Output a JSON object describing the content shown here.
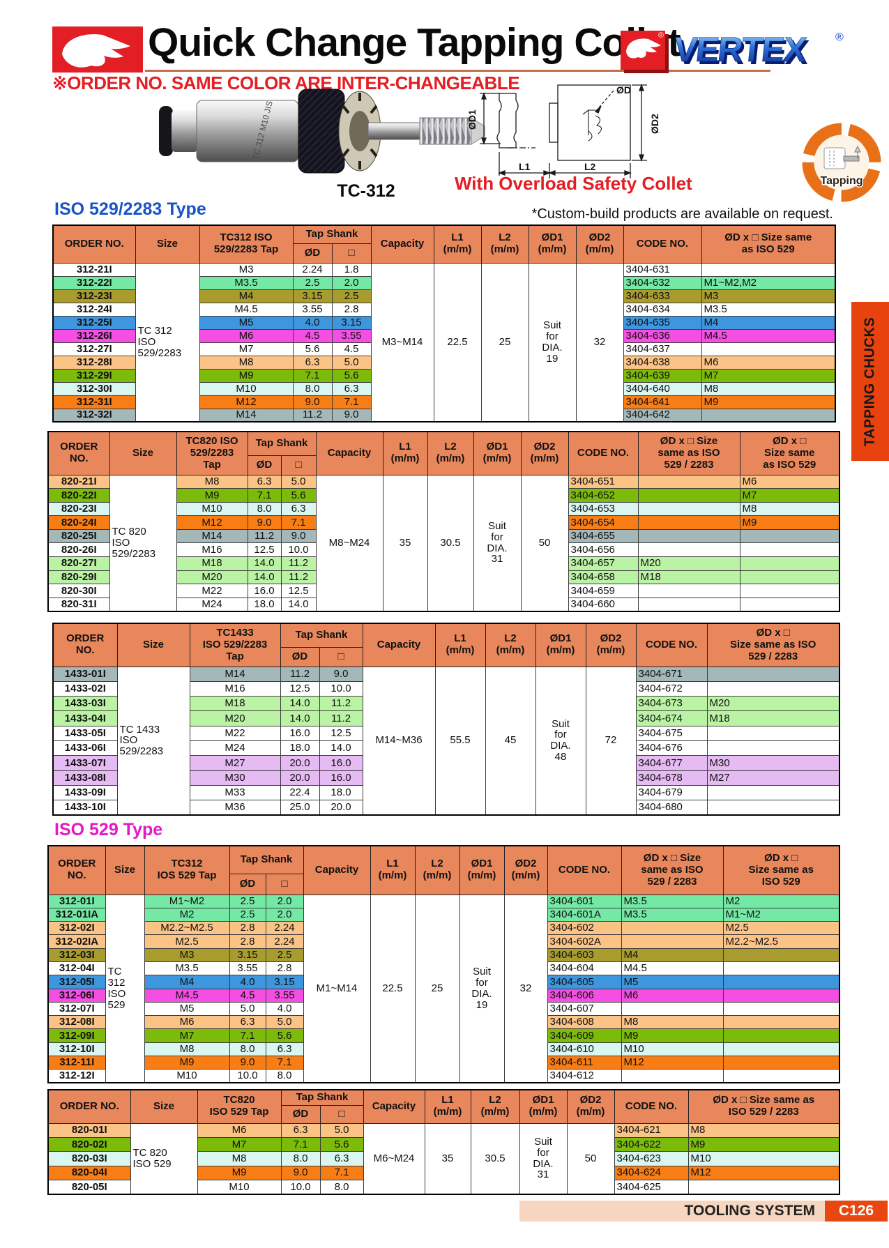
{
  "header": {
    "title": "Quick Change Tapping Collet",
    "brand": "VERTEX",
    "reg": "®",
    "note": "※ORDER NO. SAME COLOR ARE INTER-CHANGEABLE",
    "product_label": "TC-312",
    "overload_text": "With Overload Safety Collet",
    "badge_label": "Tapping"
  },
  "side_tab": "TAPPING CHUCKS",
  "sections": {
    "s1": {
      "title": "ISO 529/2283 Type",
      "note": "*Custom-build products are available on request."
    },
    "s2": {
      "title": "ISO 529 Type"
    }
  },
  "diagram": {
    "labels": [
      "ØD1",
      "ØD",
      "ØD2",
      "L1",
      "L2"
    ]
  },
  "footer": {
    "left": "TOOLING SYSTEM",
    "page": "C126"
  },
  "colors": {
    "accent_red": "#e31e24",
    "section_blue": "#1853c6",
    "section_magenta": "#e319c8",
    "header_bg": "#e8875c",
    "tab_bg": "#e8430e",
    "footer_bar_bg": "#f6d6bf",
    "footer_page_bg": "#e8470f",
    "title_underline": "#bf6f4b"
  },
  "row_colors": {
    "white": "#ffffff",
    "mint": "#74e9a5",
    "olive": "#a89c2f",
    "blue": "#3e96de",
    "magenta": "#f44ee3",
    "peach": "#fbc386",
    "green": "#7cbb0a",
    "cyan": "#d9f6f0",
    "orange": "#f97d15",
    "grayblue": "#a4b7b9",
    "ltgreen": "#bbf3a4",
    "purple": "#e6baf3"
  },
  "tables": [
    {
      "id": "t1",
      "tap_header": "TC312 ISO\n529/2283 Tap",
      "headers": {
        "order": "ORDER NO.",
        "size": "Size",
        "tap_shank": "Tap Shank",
        "od": "ØD",
        "sq": "□",
        "capacity": "Capacity",
        "l1": "L1\n(m/m)",
        "l2": "L2\n(m/m)",
        "od1": "ØD1\n(m/m)",
        "od2": "ØD2\n(m/m)",
        "code": "CODE NO.",
        "extras": [
          "ØD x □  Size same\nas ISO 529"
        ]
      },
      "merged": {
        "size": "TC 312\nISO\n529/2283",
        "capacity": "M3~M14",
        "l1": "22.5",
        "l2": "25",
        "od1": "Suit\nfor\nDIA.\n19",
        "od2": "32"
      },
      "rows": [
        {
          "order": "312-21I",
          "color": "white",
          "tap": "M3",
          "od": "2.24",
          "sq": "1.8",
          "code": "3404-631",
          "extras": [
            ""
          ]
        },
        {
          "order": "312-22I",
          "color": "mint",
          "tap": "M3.5",
          "od": "2.5",
          "sq": "2.0",
          "code": "3404-632",
          "extras": [
            "M1~M2,M2"
          ]
        },
        {
          "order": "312-23I",
          "color": "olive",
          "tap": "M4",
          "od": "3.15",
          "sq": "2.5",
          "code": "3404-633",
          "extras": [
            "M3"
          ]
        },
        {
          "order": "312-24I",
          "color": "white",
          "tap": "M4.5",
          "od": "3.55",
          "sq": "2.8",
          "code": "3404-634",
          "extras": [
            "M3.5"
          ]
        },
        {
          "order": "312-25I",
          "color": "blue",
          "tap": "M5",
          "od": "4.0",
          "sq": "3.15",
          "code": "3404-635",
          "extras": [
            "M4"
          ]
        },
        {
          "order": "312-26I",
          "color": "magenta",
          "tap": "M6",
          "od": "4.5",
          "sq": "3.55",
          "code": "3404-636",
          "extras": [
            "M4.5"
          ]
        },
        {
          "order": "312-27I",
          "color": "white",
          "tap": "M7",
          "od": "5.6",
          "sq": "4.5",
          "code": "3404-637",
          "extras": [
            ""
          ]
        },
        {
          "order": "312-28I",
          "color": "peach",
          "tap": "M8",
          "od": "6.3",
          "sq": "5.0",
          "code": "3404-638",
          "extras": [
            "M6"
          ]
        },
        {
          "order": "312-29I",
          "color": "green",
          "tap": "M9",
          "od": "7.1",
          "sq": "5.6",
          "code": "3404-639",
          "extras": [
            "M7"
          ]
        },
        {
          "order": "312-30I",
          "color": "cyan",
          "tap": "M10",
          "od": "8.0",
          "sq": "6.3",
          "code": "3404-640",
          "extras": [
            "M8"
          ]
        },
        {
          "order": "312-31I",
          "color": "orange",
          "tap": "M12",
          "od": "9.0",
          "sq": "7.1",
          "code": "3404-641",
          "extras": [
            "M9"
          ]
        },
        {
          "order": "312-32I",
          "color": "grayblue",
          "tap": "M14",
          "od": "11.2",
          "sq": "9.0",
          "code": "3404-642",
          "extras": [
            ""
          ]
        }
      ]
    },
    {
      "id": "t2",
      "tap_header": "TC820 ISO\n529/2283\nTap",
      "headers": {
        "order": "ORDER\nNO.",
        "size": "Size",
        "tap_shank": "Tap Shank",
        "od": "ØD",
        "sq": "□",
        "capacity": "Capacity",
        "l1": "L1\n(m/m)",
        "l2": "L2\n(m/m)",
        "od1": "ØD1\n(m/m)",
        "od2": "ØD2\n(m/m)",
        "code": "CODE NO.",
        "extras": [
          "ØD x □ Size\nsame as ISO\n529 / 2283",
          "ØD x □\nSize same\nas ISO 529"
        ]
      },
      "merged": {
        "size": "TC 820\nISO\n529/2283",
        "capacity": "M8~M24",
        "l1": "35",
        "l2": "30.5",
        "od1": "Suit\nfor\nDIA.\n31",
        "od2": "50"
      },
      "rows": [
        {
          "order": "820-21I",
          "color": "peach",
          "tap": "M8",
          "od": "6.3",
          "sq": "5.0",
          "code": "3404-651",
          "extras": [
            "",
            "M6"
          ]
        },
        {
          "order": "820-22I",
          "color": "green",
          "tap": "M9",
          "od": "7.1",
          "sq": "5.6",
          "code": "3404-652",
          "extras": [
            "",
            "M7"
          ]
        },
        {
          "order": "820-23I",
          "color": "cyan",
          "tap": "M10",
          "od": "8.0",
          "sq": "6.3",
          "code": "3404-653",
          "extras": [
            "",
            "M8"
          ]
        },
        {
          "order": "820-24I",
          "color": "orange",
          "tap": "M12",
          "od": "9.0",
          "sq": "7.1",
          "code": "3404-654",
          "extras": [
            "",
            "M9"
          ]
        },
        {
          "order": "820-25I",
          "color": "grayblue",
          "tap": "M14",
          "od": "11.2",
          "sq": "9.0",
          "code": "3404-655",
          "extras": [
            "",
            ""
          ]
        },
        {
          "order": "820-26I",
          "color": "white",
          "tap": "M16",
          "od": "12.5",
          "sq": "10.0",
          "code": "3404-656",
          "extras": [
            "",
            ""
          ]
        },
        {
          "order": "820-27I",
          "color": "ltgreen",
          "tap": "M18",
          "od": "14.0",
          "sq": "11.2",
          "code": "3404-657",
          "extras": [
            "M20",
            ""
          ]
        },
        {
          "order": "820-29I",
          "color": "ltgreen",
          "tap": "M20",
          "od": "14.0",
          "sq": "11.2",
          "code": "3404-658",
          "extras": [
            "M18",
            ""
          ]
        },
        {
          "order": "820-30I",
          "color": "white",
          "tap": "M22",
          "od": "16.0",
          "sq": "12.5",
          "code": "3404-659",
          "extras": [
            "",
            ""
          ]
        },
        {
          "order": "820-31I",
          "color": "white",
          "tap": "M24",
          "od": "18.0",
          "sq": "14.0",
          "code": "3404-660",
          "extras": [
            "",
            ""
          ]
        }
      ]
    },
    {
      "id": "t3",
      "tap_header": "TC1433\nISO 529/2283\nTap",
      "headers": {
        "order": "ORDER\nNO.",
        "size": "Size",
        "tap_shank": "Tap Shank",
        "od": "ØD",
        "sq": "□",
        "capacity": "Capacity",
        "l1": "L1\n(m/m)",
        "l2": "L2\n(m/m)",
        "od1": "ØD1\n(m/m)",
        "od2": "ØD2\n(m/m)",
        "code": "CODE NO.",
        "extras": [
          "ØD x □\nSize same as ISO\n529 / 2283"
        ]
      },
      "merged": {
        "size": "TC 1433\nISO\n529/2283",
        "capacity": "M14~M36",
        "l1": "55.5",
        "l2": "45",
        "od1": "Suit\nfor\nDIA.\n48",
        "od2": "72"
      },
      "rows": [
        {
          "order": "1433-01I",
          "color": "grayblue",
          "tap": "M14",
          "od": "11.2",
          "sq": "9.0",
          "code": "3404-671",
          "extras": [
            ""
          ]
        },
        {
          "order": "1433-02I",
          "color": "white",
          "tap": "M16",
          "od": "12.5",
          "sq": "10.0",
          "code": "3404-672",
          "extras": [
            ""
          ]
        },
        {
          "order": "1433-03I",
          "color": "ltgreen",
          "tap": "M18",
          "od": "14.0",
          "sq": "11.2",
          "code": "3404-673",
          "extras": [
            "M20"
          ]
        },
        {
          "order": "1433-04I",
          "color": "ltgreen",
          "tap": "M20",
          "od": "14.0",
          "sq": "11.2",
          "code": "3404-674",
          "extras": [
            "M18"
          ]
        },
        {
          "order": "1433-05I",
          "color": "white",
          "tap": "M22",
          "od": "16.0",
          "sq": "12.5",
          "code": "3404-675",
          "extras": [
            ""
          ]
        },
        {
          "order": "1433-06I",
          "color": "white",
          "tap": "M24",
          "od": "18.0",
          "sq": "14.0",
          "code": "3404-676",
          "extras": [
            ""
          ]
        },
        {
          "order": "1433-07I",
          "color": "purple",
          "tap": "M27",
          "od": "20.0",
          "sq": "16.0",
          "code": "3404-677",
          "extras": [
            "M30"
          ]
        },
        {
          "order": "1433-08I",
          "color": "purple",
          "tap": "M30",
          "od": "20.0",
          "sq": "16.0",
          "code": "3404-678",
          "extras": [
            "M27"
          ]
        },
        {
          "order": "1433-09I",
          "color": "white",
          "tap": "M33",
          "od": "22.4",
          "sq": "18.0",
          "code": "3404-679",
          "extras": [
            ""
          ]
        },
        {
          "order": "1433-10I",
          "color": "white",
          "tap": "M36",
          "od": "25.0",
          "sq": "20.0",
          "code": "3404-680",
          "extras": [
            ""
          ]
        }
      ]
    },
    {
      "id": "t4",
      "tap_header": "TC312\nIOS 529 Tap",
      "headers": {
        "order": "ORDER\nNO.",
        "size": "Size",
        "tap_shank": "Tap Shank",
        "od": "ØD",
        "sq": "□",
        "capacity": "Capacity",
        "l1": "L1\n(m/m)",
        "l2": "L2\n(m/m)",
        "od1": "ØD1\n(m/m)",
        "od2": "ØD2\n(m/m)",
        "code": "CODE NO.",
        "extras": [
          "ØD x □ Size\nsame as ISO\n529 / 2283",
          "ØD x □\nSize same as\nISO 529"
        ]
      },
      "merged": {
        "size": "TC\n312\nISO\n529",
        "capacity": "M1~M14",
        "l1": "22.5",
        "l2": "25",
        "od1": "Suit\nfor\nDIA.\n19",
        "od2": "32"
      },
      "rows": [
        {
          "order": "312-01I",
          "color": "mint",
          "tap": "M1~M2",
          "od": "2.5",
          "sq": "2.0",
          "code": "3404-601",
          "extras": [
            "M3.5",
            "M2"
          ]
        },
        {
          "order": "312-01IA",
          "color": "mint",
          "tap": "M2",
          "od": "2.5",
          "sq": "2.0",
          "code": "3404-601A",
          "extras": [
            "M3.5",
            "M1~M2"
          ]
        },
        {
          "order": "312-02I",
          "color": "peach",
          "tap": "M2.2~M2.5",
          "od": "2.8",
          "sq": "2.24",
          "code": "3404-602",
          "extras": [
            "",
            "M2.5"
          ]
        },
        {
          "order": "312-02IA",
          "color": "peach",
          "tap": "M2.5",
          "od": "2.8",
          "sq": "2.24",
          "code": "3404-602A",
          "extras": [
            "",
            "M2.2~M2.5"
          ]
        },
        {
          "order": "312-03I",
          "color": "olive",
          "tap": "M3",
          "od": "3.15",
          "sq": "2.5",
          "code": "3404-603",
          "extras": [
            "M4",
            ""
          ]
        },
        {
          "order": "312-04I",
          "color": "white",
          "tap": "M3.5",
          "od": "3.55",
          "sq": "2.8",
          "code": "3404-604",
          "extras": [
            "M4.5",
            ""
          ]
        },
        {
          "order": "312-05I",
          "color": "blue",
          "tap": "M4",
          "od": "4.0",
          "sq": "3.15",
          "code": "3404-605",
          "extras": [
            "M5",
            ""
          ]
        },
        {
          "order": "312-06I",
          "color": "magenta",
          "tap": "M4.5",
          "od": "4.5",
          "sq": "3.55",
          "code": "3404-606",
          "extras": [
            "M6",
            ""
          ]
        },
        {
          "order": "312-07I",
          "color": "white",
          "tap": "M5",
          "od": "5.0",
          "sq": "4.0",
          "code": "3404-607",
          "extras": [
            "",
            ""
          ]
        },
        {
          "order": "312-08I",
          "color": "peach",
          "tap": "M6",
          "od": "6.3",
          "sq": "5.0",
          "code": "3404-608",
          "extras": [
            "M8",
            ""
          ]
        },
        {
          "order": "312-09I",
          "color": "green",
          "tap": "M7",
          "od": "7.1",
          "sq": "5.6",
          "code": "3404-609",
          "extras": [
            "M9",
            ""
          ]
        },
        {
          "order": "312-10I",
          "color": "cyan",
          "tap": "M8",
          "od": "8.0",
          "sq": "6.3",
          "code": "3404-610",
          "extras": [
            "M10",
            ""
          ]
        },
        {
          "order": "312-11I",
          "color": "orange",
          "tap": "M9",
          "od": "9.0",
          "sq": "7.1",
          "code": "3404-611",
          "extras": [
            "M12",
            ""
          ]
        },
        {
          "order": "312-12I",
          "color": "white",
          "tap": "M10",
          "od": "10.0",
          "sq": "8.0",
          "code": "3404-612",
          "extras": [
            "",
            ""
          ]
        }
      ]
    },
    {
      "id": "t5",
      "tap_header": "TC820\nISO 529 Tap",
      "headers": {
        "order": "ORDER NO.",
        "size": "Size",
        "tap_shank": "Tap Shank",
        "od": "ØD",
        "sq": "□",
        "capacity": "Capacity",
        "l1": "L1\n(m/m)",
        "l2": "L2\n(m/m)",
        "od1": "ØD1\n(m/m)",
        "od2": "ØD2\n(m/m)",
        "code": "CODE NO.",
        "extras": [
          "ØD x □ Size same as\nISO 529 / 2283"
        ]
      },
      "merged": {
        "size": "TC 820\nISO 529",
        "capacity": "M6~M24",
        "l1": "35",
        "l2": "30.5",
        "od1": "Suit\nfor\nDIA.\n31",
        "od2": "50"
      },
      "rows": [
        {
          "order": "820-01I",
          "color": "peach",
          "tap": "M6",
          "od": "6.3",
          "sq": "5.0",
          "code": "3404-621",
          "extras": [
            "M8"
          ]
        },
        {
          "order": "820-02I",
          "color": "green",
          "tap": "M7",
          "od": "7.1",
          "sq": "5.6",
          "code": "3404-622",
          "extras": [
            "M9"
          ]
        },
        {
          "order": "820-03I",
          "color": "cyan",
          "tap": "M8",
          "od": "8.0",
          "sq": "6.3",
          "code": "3404-623",
          "extras": [
            "M10"
          ]
        },
        {
          "order": "820-04I",
          "color": "orange",
          "tap": "M9",
          "od": "9.0",
          "sq": "7.1",
          "code": "3404-624",
          "extras": [
            "M12"
          ]
        },
        {
          "order": "820-05I",
          "color": "white",
          "tap": "M10",
          "od": "10.0",
          "sq": "8.0",
          "code": "3404-625",
          "extras": [
            ""
          ]
        }
      ]
    }
  ]
}
